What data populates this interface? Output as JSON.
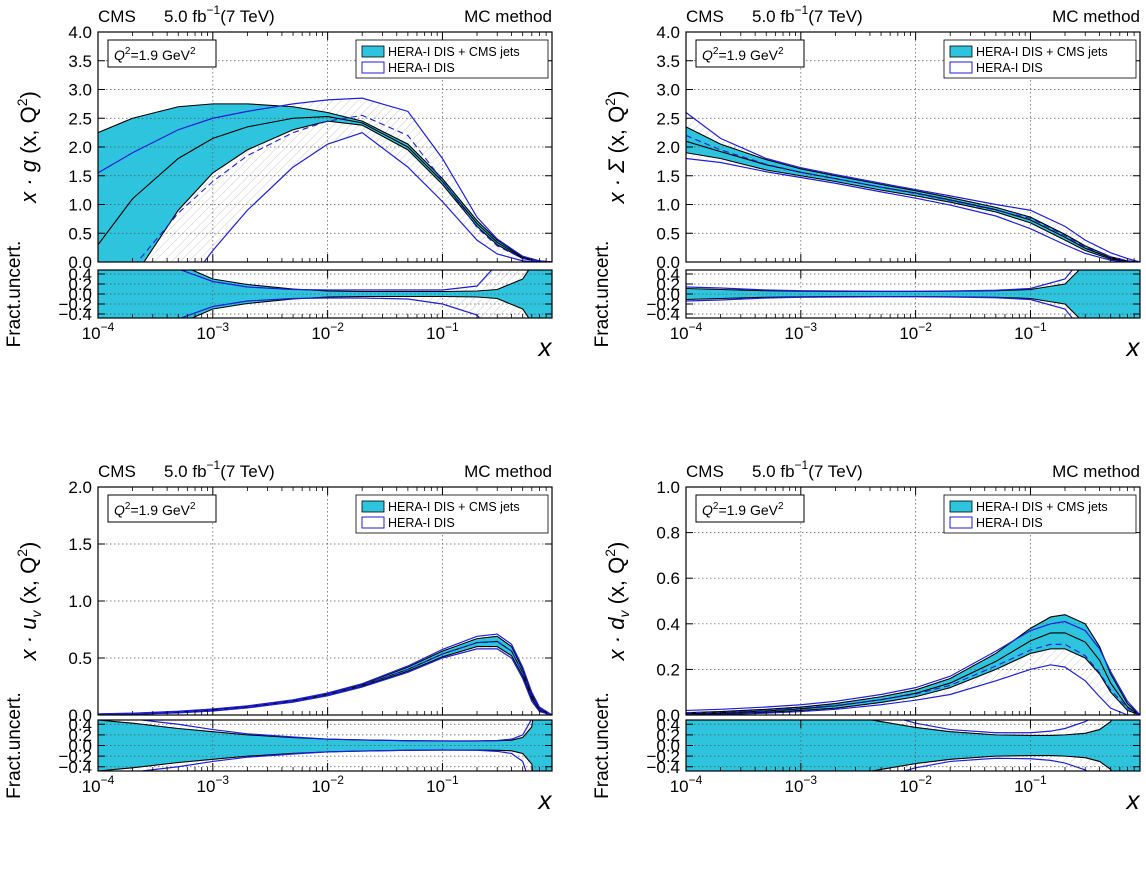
{
  "colors": {
    "band": "#2ec4de",
    "hera": "#1f1fd6",
    "frame": "#000000",
    "grid": "#555555"
  },
  "panel_text": {
    "experiment": "CMS",
    "lumi_value": "5.0",
    "lumi_unit": "fb",
    "lumi_exp": "−1",
    "energy": "(7 TeV)",
    "method": "MC method",
    "q2_lhs": "Q",
    "q2_exp": "2",
    "q2_value": "=1.9 GeV",
    "q2_unit_exp": "2",
    "x_label": "x",
    "ratio_label": "Fract.uncert.",
    "legend_band": "HERA-I DIS + CMS jets",
    "legend_line": "HERA-I DIS"
  },
  "chart_data": [
    {
      "type": "line",
      "id": "gluon",
      "ylabel": {
        "pre": "x · g",
        "sub": "",
        "post": " (x, Q",
        "sup": "2",
        "close": ")"
      },
      "xlim": [
        0.0001,
        0.9
      ],
      "xscale": "log",
      "xticks": [
        {
          "v": 0.0001,
          "label": "10",
          "exp": "−4"
        },
        {
          "v": 0.001,
          "label": "10",
          "exp": "−3"
        },
        {
          "v": 0.01,
          "label": "10",
          "exp": "−2"
        },
        {
          "v": 0.1,
          "label": "10",
          "exp": "−1"
        }
      ],
      "ylim": [
        0,
        4.0
      ],
      "yticks": [
        "0.0",
        "0.5",
        "1.0",
        "1.5",
        "2.0",
        "2.5",
        "3.0",
        "3.5",
        "4.0"
      ],
      "grid": true,
      "legend": "top-right",
      "x": [
        0.0001,
        0.0002,
        0.0005,
        0.001,
        0.002,
        0.005,
        0.01,
        0.02,
        0.05,
        0.1,
        0.2,
        0.3,
        0.5,
        0.7,
        0.9
      ],
      "band_upper": [
        2.25,
        2.5,
        2.7,
        2.75,
        2.75,
        2.7,
        2.6,
        2.45,
        2.05,
        1.45,
        0.72,
        0.38,
        0.09,
        0.02,
        0.0
      ],
      "band_lower": [
        -1.6,
        -0.3,
        0.9,
        1.55,
        1.95,
        2.3,
        2.45,
        2.38,
        1.95,
        1.35,
        0.62,
        0.3,
        0.06,
        0.01,
        0.0
      ],
      "central": [
        0.3,
        1.1,
        1.8,
        2.15,
        2.35,
        2.5,
        2.53,
        2.42,
        2.0,
        1.4,
        0.67,
        0.34,
        0.075,
        0.015,
        0.0
      ],
      "hera_upper": [
        1.55,
        1.9,
        2.3,
        2.5,
        2.62,
        2.75,
        2.82,
        2.85,
        2.62,
        1.8,
        0.78,
        0.4,
        0.1,
        0.02,
        0.0
      ],
      "hera_lower": [
        -2.5,
        -1.8,
        -0.6,
        0.2,
        0.9,
        1.65,
        2.05,
        2.25,
        1.65,
        1.05,
        0.38,
        0.14,
        0.02,
        0.0,
        0.0
      ],
      "hera_central": [
        -0.9,
        -0.1,
        0.85,
        1.4,
        1.85,
        2.25,
        2.45,
        2.55,
        2.2,
        1.42,
        0.6,
        0.28,
        0.06,
        0.01,
        0.0
      ],
      "ratio": {
        "ylim": [
          -0.48,
          0.48
        ],
        "yticks": [
          "−0.4",
          "−0.2",
          "0.0",
          "0.2",
          "0.4"
        ],
        "x": [
          0.0001,
          0.0002,
          0.0005,
          0.001,
          0.002,
          0.005,
          0.01,
          0.02,
          0.05,
          0.1,
          0.2,
          0.3,
          0.5,
          0.7,
          0.9
        ],
        "band": [
          2.0,
          1.5,
          0.6,
          0.3,
          0.19,
          0.1,
          0.06,
          0.05,
          0.05,
          0.05,
          0.06,
          0.09,
          0.3,
          0.8,
          2.0
        ],
        "hera_upper": [
          5.0,
          5.0,
          0.5,
          0.25,
          0.14,
          0.09,
          0.08,
          0.08,
          0.08,
          0.08,
          0.16,
          0.6,
          2.0,
          3.0,
          3.0
        ],
        "hera_lower": [
          5.0,
          5.0,
          0.5,
          0.25,
          0.14,
          0.09,
          0.08,
          0.08,
          0.1,
          0.2,
          0.42,
          0.9,
          2.0,
          3.0,
          3.0
        ]
      }
    },
    {
      "type": "line",
      "id": "sigma",
      "ylabel": {
        "pre": "x · Σ",
        "sub": "",
        "post": " (x, Q",
        "sup": "2",
        "close": ")"
      },
      "xlim": [
        0.0001,
        0.9
      ],
      "xscale": "log",
      "xticks": [
        {
          "v": 0.0001,
          "label": "10",
          "exp": "−4"
        },
        {
          "v": 0.001,
          "label": "10",
          "exp": "−3"
        },
        {
          "v": 0.01,
          "label": "10",
          "exp": "−2"
        },
        {
          "v": 0.1,
          "label": "10",
          "exp": "−1"
        }
      ],
      "ylim": [
        0,
        4.0
      ],
      "yticks": [
        "0.0",
        "0.5",
        "1.0",
        "1.5",
        "2.0",
        "2.5",
        "3.0",
        "3.5",
        "4.0"
      ],
      "grid": true,
      "legend": "top-right",
      "x": [
        0.0001,
        0.0002,
        0.0005,
        0.001,
        0.002,
        0.005,
        0.01,
        0.02,
        0.05,
        0.1,
        0.2,
        0.3,
        0.5,
        0.7,
        0.9
      ],
      "band_upper": [
        2.35,
        2.05,
        1.78,
        1.62,
        1.5,
        1.35,
        1.24,
        1.12,
        0.95,
        0.78,
        0.48,
        0.28,
        0.09,
        0.02,
        0.0
      ],
      "band_lower": [
        1.9,
        1.8,
        1.6,
        1.5,
        1.4,
        1.25,
        1.15,
        1.04,
        0.87,
        0.68,
        0.38,
        0.2,
        0.05,
        0.01,
        0.0
      ],
      "central": [
        2.1,
        1.92,
        1.69,
        1.56,
        1.45,
        1.3,
        1.2,
        1.08,
        0.91,
        0.73,
        0.43,
        0.24,
        0.07,
        0.015,
        0.0
      ],
      "hera_upper": [
        2.6,
        2.15,
        1.8,
        1.64,
        1.52,
        1.37,
        1.26,
        1.15,
        1.0,
        0.9,
        0.62,
        0.38,
        0.16,
        0.06,
        0.0
      ],
      "hera_lower": [
        1.8,
        1.73,
        1.57,
        1.47,
        1.37,
        1.22,
        1.11,
        0.99,
        0.8,
        0.58,
        0.3,
        0.15,
        0.03,
        0.0,
        0.0
      ],
      "hera_central": [
        2.2,
        1.95,
        1.7,
        1.56,
        1.45,
        1.3,
        1.19,
        1.07,
        0.9,
        0.76,
        0.46,
        0.26,
        0.09,
        0.02,
        0.0
      ],
      "ratio": {
        "ylim": [
          -0.48,
          0.48
        ],
        "yticks": [
          "−0.4",
          "−0.2",
          "0.0",
          "0.2",
          "0.4"
        ],
        "x": [
          0.0001,
          0.0002,
          0.0005,
          0.001,
          0.002,
          0.005,
          0.01,
          0.02,
          0.05,
          0.1,
          0.2,
          0.3,
          0.5,
          0.7,
          0.9
        ],
        "band": [
          0.11,
          0.09,
          0.065,
          0.055,
          0.05,
          0.05,
          0.05,
          0.055,
          0.065,
          0.09,
          0.2,
          0.6,
          1.5,
          2.0,
          2.0
        ],
        "hera_upper": [
          0.14,
          0.12,
          0.08,
          0.065,
          0.06,
          0.055,
          0.055,
          0.06,
          0.075,
          0.11,
          0.3,
          0.8,
          2.0,
          2.5,
          2.5
        ],
        "hera_lower": [
          0.14,
          0.12,
          0.08,
          0.065,
          0.06,
          0.055,
          0.055,
          0.06,
          0.075,
          0.11,
          0.3,
          0.8,
          2.0,
          2.5,
          2.5
        ]
      }
    },
    {
      "type": "line",
      "id": "uv",
      "ylabel": {
        "pre": "x · u",
        "sub": "v",
        "post": " (x, Q",
        "sup": "2",
        "close": ")"
      },
      "xlim": [
        0.0001,
        0.9
      ],
      "xscale": "log",
      "xticks": [
        {
          "v": 0.0001,
          "label": "10",
          "exp": "−4"
        },
        {
          "v": 0.001,
          "label": "10",
          "exp": "−3"
        },
        {
          "v": 0.01,
          "label": "10",
          "exp": "−2"
        },
        {
          "v": 0.1,
          "label": "10",
          "exp": "−1"
        }
      ],
      "ylim": [
        0,
        2.0
      ],
      "yticks": [
        "0.0",
        "0.5",
        "1.0",
        "1.5",
        "2.0"
      ],
      "grid": true,
      "legend": "top-right",
      "x": [
        0.0001,
        0.0002,
        0.0005,
        0.001,
        0.002,
        0.005,
        0.01,
        0.02,
        0.05,
        0.1,
        0.2,
        0.3,
        0.4,
        0.5,
        0.6,
        0.7,
        0.9
      ],
      "band_upper": [
        0.008,
        0.014,
        0.03,
        0.05,
        0.078,
        0.13,
        0.19,
        0.27,
        0.42,
        0.56,
        0.67,
        0.69,
        0.6,
        0.4,
        0.18,
        0.06,
        0.0
      ],
      "band_lower": [
        0.003,
        0.007,
        0.02,
        0.037,
        0.064,
        0.115,
        0.17,
        0.25,
        0.385,
        0.51,
        0.6,
        0.6,
        0.52,
        0.34,
        0.14,
        0.04,
        0.0
      ],
      "central": [
        0.0055,
        0.0105,
        0.025,
        0.0435,
        0.071,
        0.1225,
        0.18,
        0.26,
        0.4,
        0.535,
        0.635,
        0.645,
        0.56,
        0.37,
        0.16,
        0.05,
        0.0
      ],
      "hera_upper": [
        0.01,
        0.016,
        0.033,
        0.053,
        0.08,
        0.133,
        0.193,
        0.275,
        0.43,
        0.575,
        0.69,
        0.71,
        0.62,
        0.42,
        0.2,
        0.07,
        0.0
      ],
      "hera_lower": [
        0.002,
        0.006,
        0.018,
        0.035,
        0.062,
        0.113,
        0.168,
        0.245,
        0.375,
        0.5,
        0.58,
        0.58,
        0.5,
        0.32,
        0.12,
        0.03,
        0.0
      ],
      "hera_central": [
        0.006,
        0.011,
        0.0255,
        0.044,
        0.071,
        0.123,
        0.18,
        0.26,
        0.4,
        0.535,
        0.635,
        0.645,
        0.56,
        0.37,
        0.16,
        0.05,
        0.0
      ],
      "ratio": {
        "ylim": [
          -0.48,
          0.48
        ],
        "yticks": [
          "−0.4",
          "−0.2",
          "0.0",
          "0.2",
          "0.4"
        ],
        "x": [
          0.0001,
          0.0002,
          0.0005,
          0.001,
          0.002,
          0.005,
          0.01,
          0.02,
          0.05,
          0.1,
          0.2,
          0.3,
          0.4,
          0.5,
          0.6,
          0.7,
          0.9
        ],
        "band": [
          0.48,
          0.42,
          0.32,
          0.26,
          0.2,
          0.15,
          0.12,
          0.105,
          0.09,
          0.085,
          0.085,
          0.09,
          0.1,
          0.15,
          0.35,
          1.5,
          2.0
        ],
        "hera_upper": [
          0.55,
          0.5,
          0.4,
          0.3,
          0.22,
          0.16,
          0.12,
          0.105,
          0.09,
          0.085,
          0.085,
          0.095,
          0.12,
          0.2,
          0.5,
          2.0,
          2.5
        ],
        "hera_lower": [
          0.55,
          0.5,
          0.4,
          0.3,
          0.22,
          0.16,
          0.12,
          0.105,
          0.09,
          0.085,
          0.09,
          0.11,
          0.15,
          0.3,
          0.8,
          2.0,
          2.5
        ]
      }
    },
    {
      "type": "line",
      "id": "dv",
      "ylabel": {
        "pre": "x · d",
        "sub": "v",
        "post": " (x, Q",
        "sup": "2",
        "close": ")"
      },
      "xlim": [
        0.0001,
        0.9
      ],
      "xscale": "log",
      "xticks": [
        {
          "v": 0.0001,
          "label": "10",
          "exp": "−4"
        },
        {
          "v": 0.001,
          "label": "10",
          "exp": "−3"
        },
        {
          "v": 0.01,
          "label": "10",
          "exp": "−2"
        },
        {
          "v": 0.1,
          "label": "10",
          "exp": "−1"
        }
      ],
      "ylim": [
        0,
        1.0
      ],
      "yticks": [
        "0.0",
        "0.2",
        "0.4",
        "0.6",
        "0.8",
        "1.0"
      ],
      "grid": true,
      "legend": "top-right",
      "x": [
        0.0001,
        0.0002,
        0.0005,
        0.001,
        0.002,
        0.005,
        0.01,
        0.02,
        0.05,
        0.1,
        0.15,
        0.2,
        0.3,
        0.4,
        0.5,
        0.7,
        0.9
      ],
      "band_upper": [
        0.01,
        0.015,
        0.025,
        0.035,
        0.05,
        0.08,
        0.11,
        0.16,
        0.27,
        0.38,
        0.43,
        0.44,
        0.4,
        0.3,
        0.18,
        0.05,
        0.0
      ],
      "band_lower": [
        0.0,
        0.005,
        0.012,
        0.02,
        0.03,
        0.055,
        0.08,
        0.12,
        0.2,
        0.27,
        0.29,
        0.29,
        0.25,
        0.18,
        0.1,
        0.02,
        0.0
      ],
      "central": [
        0.005,
        0.01,
        0.018,
        0.027,
        0.04,
        0.067,
        0.095,
        0.14,
        0.235,
        0.325,
        0.36,
        0.36,
        0.32,
        0.24,
        0.14,
        0.035,
        0.0
      ],
      "hera_upper": [
        0.02,
        0.025,
        0.035,
        0.045,
        0.06,
        0.09,
        0.12,
        0.17,
        0.28,
        0.37,
        0.4,
        0.41,
        0.37,
        0.29,
        0.19,
        0.06,
        0.0
      ],
      "hera_lower": [
        0.0,
        0.002,
        0.008,
        0.015,
        0.025,
        0.045,
        0.065,
        0.09,
        0.15,
        0.2,
        0.22,
        0.21,
        0.15,
        0.08,
        0.03,
        0.0,
        0.0
      ],
      "hera_central": [
        0.01,
        0.012,
        0.02,
        0.03,
        0.042,
        0.067,
        0.092,
        0.13,
        0.215,
        0.285,
        0.31,
        0.31,
        0.26,
        0.185,
        0.11,
        0.03,
        0.0
      ],
      "ratio": {
        "ylim": [
          -0.48,
          0.48
        ],
        "yticks": [
          "−0.4",
          "−0.2",
          "0.0",
          "0.2",
          "0.4"
        ],
        "x": [
          0.0001,
          0.0002,
          0.0005,
          0.001,
          0.002,
          0.005,
          0.01,
          0.02,
          0.05,
          0.1,
          0.15,
          0.2,
          0.3,
          0.4,
          0.5,
          0.7,
          0.9
        ],
        "band": [
          2.0,
          1.5,
          1.0,
          0.8,
          0.6,
          0.45,
          0.34,
          0.26,
          0.2,
          0.19,
          0.19,
          0.2,
          0.23,
          0.3,
          0.45,
          1.2,
          2.0
        ],
        "hera_upper": [
          3.0,
          2.5,
          2.0,
          1.5,
          1.0,
          0.6,
          0.42,
          0.3,
          0.24,
          0.24,
          0.27,
          0.32,
          0.45,
          0.6,
          1.0,
          2.0,
          3.0
        ],
        "hera_lower": [
          3.0,
          2.5,
          2.0,
          1.5,
          1.0,
          0.6,
          0.42,
          0.3,
          0.24,
          0.25,
          0.28,
          0.33,
          0.46,
          0.62,
          1.0,
          2.0,
          3.0
        ]
      }
    }
  ]
}
